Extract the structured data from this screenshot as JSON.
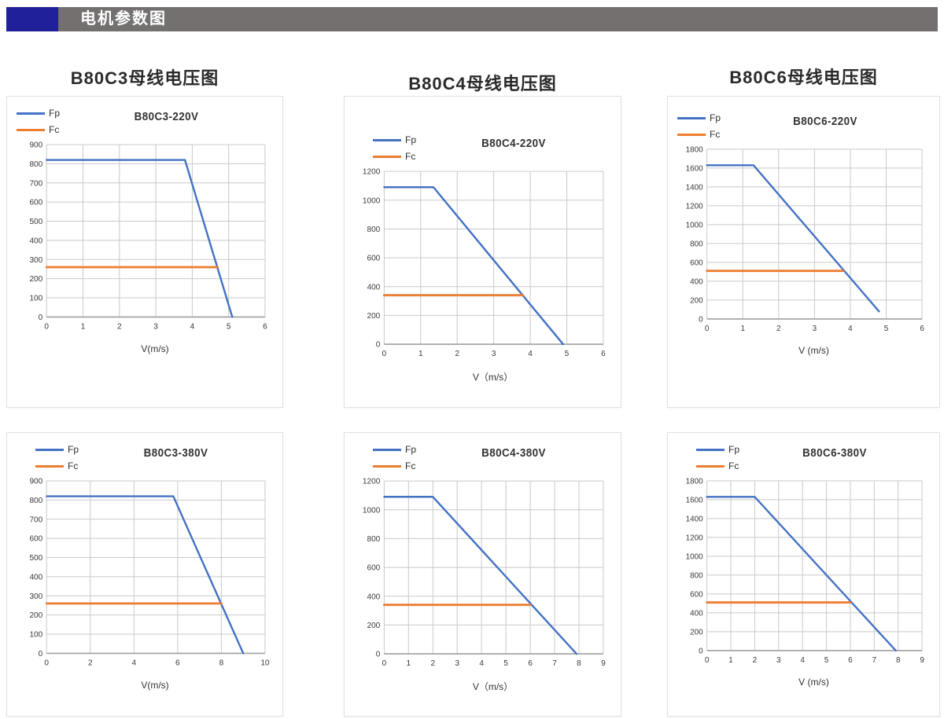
{
  "header": {
    "title": "电机参数图"
  },
  "colors": {
    "fp": "#4472c4",
    "fc": "#ed7d31",
    "grid": "#c9c9c9",
    "axis": "#a0a0a0",
    "header_bar": "#747070",
    "header_accent": "#20209a"
  },
  "chart_data": [
    {
      "type": "line",
      "group": "B80C3母线电压图",
      "title": "B80C3-220V",
      "xlabel": "V(m/s)",
      "xlim": [
        0,
        6
      ],
      "xtick": 1,
      "ylim": [
        0,
        900
      ],
      "ytick": 100,
      "legend_position": "top-left",
      "grid": true,
      "series": [
        {
          "name": "Fp",
          "color": "#4472c4",
          "points": [
            [
              0,
              820
            ],
            [
              3.8,
              820
            ],
            [
              5.1,
              0
            ]
          ]
        },
        {
          "name": "Fc",
          "color": "#ed7d31",
          "points": [
            [
              0,
              260
            ],
            [
              4.7,
              260
            ]
          ]
        }
      ]
    },
    {
      "type": "line",
      "group": "B80C4母线电压图",
      "title": "B80C4-220V",
      "xlabel": "V（m/s）",
      "xlim": [
        0,
        6
      ],
      "xtick": 1,
      "ylim": [
        0,
        1200
      ],
      "ytick": 200,
      "legend_position": "top-left",
      "grid": true,
      "series": [
        {
          "name": "Fp",
          "color": "#4472c4",
          "points": [
            [
              0,
              1090
            ],
            [
              1.35,
              1090
            ],
            [
              4.9,
              0
            ]
          ]
        },
        {
          "name": "Fc",
          "color": "#ed7d31",
          "points": [
            [
              0,
              340
            ],
            [
              3.8,
              340
            ]
          ]
        }
      ]
    },
    {
      "type": "line",
      "group": "B80C6母线电压图",
      "title": "B80C6-220V",
      "xlabel": "V (m/s)",
      "xlim": [
        0,
        6
      ],
      "xtick": 1,
      "ylim": [
        0,
        1800
      ],
      "ytick": 200,
      "legend_position": "top-left",
      "grid": true,
      "series": [
        {
          "name": "Fp",
          "color": "#4472c4",
          "points": [
            [
              0,
              1630
            ],
            [
              1.3,
              1630
            ],
            [
              4.8,
              80
            ]
          ]
        },
        {
          "name": "Fc",
          "color": "#ed7d31",
          "points": [
            [
              0,
              510
            ],
            [
              3.8,
              510
            ]
          ]
        }
      ]
    },
    {
      "type": "line",
      "title": "B80C3-380V",
      "xlabel": "V(m/s)",
      "xlim": [
        0,
        10
      ],
      "xtick": 2,
      "ylim": [
        0,
        900
      ],
      "ytick": 100,
      "legend_position": "top-left",
      "grid": true,
      "series": [
        {
          "name": "Fp",
          "color": "#4472c4",
          "points": [
            [
              0,
              820
            ],
            [
              5.8,
              820
            ],
            [
              9,
              0
            ]
          ]
        },
        {
          "name": "Fc",
          "color": "#ed7d31",
          "points": [
            [
              0,
              260
            ],
            [
              8,
              260
            ]
          ]
        }
      ]
    },
    {
      "type": "line",
      "title": "B80C4-380V",
      "xlabel": "V（m/s）",
      "xlim": [
        0,
        9
      ],
      "xtick": 1,
      "ylim": [
        0,
        1200
      ],
      "ytick": 200,
      "legend_position": "top-left",
      "grid": true,
      "series": [
        {
          "name": "Fp",
          "color": "#4472c4",
          "points": [
            [
              0,
              1090
            ],
            [
              2,
              1090
            ],
            [
              7.9,
              0
            ]
          ]
        },
        {
          "name": "Fc",
          "color": "#ed7d31",
          "points": [
            [
              0,
              340
            ],
            [
              6,
              340
            ]
          ]
        }
      ]
    },
    {
      "type": "line",
      "title": "B80C6-380V",
      "xlabel": "V (m/s)",
      "xlim": [
        0,
        9
      ],
      "xtick": 1,
      "ylim": [
        0,
        1800
      ],
      "ytick": 200,
      "legend_position": "top-left",
      "grid": true,
      "series": [
        {
          "name": "Fp",
          "color": "#4472c4",
          "points": [
            [
              0,
              1630
            ],
            [
              2,
              1630
            ],
            [
              7.9,
              0
            ]
          ]
        },
        {
          "name": "Fc",
          "color": "#ed7d31",
          "points": [
            [
              0,
              510
            ],
            [
              6,
              510
            ]
          ]
        }
      ]
    }
  ]
}
